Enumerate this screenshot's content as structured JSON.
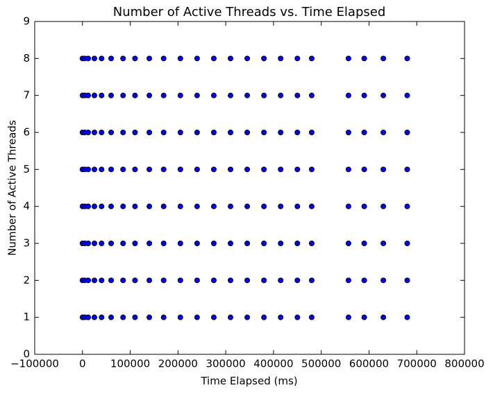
{
  "chart_data": {
    "type": "scatter",
    "title": "Number of Active Threads vs. Time Elapsed",
    "x_label": "Time Elapsed (ms)",
    "y_label": "Number of Active Threads",
    "color": "#0000ff",
    "edge_color": "#000000",
    "xlim": [
      -100000,
      800000
    ],
    "xticks": [
      {
        "value": -100000,
        "label": "−100000"
      },
      0,
      100000,
      200000,
      300000,
      400000,
      500000,
      600000,
      700000,
      800000
    ],
    "ylim": [
      0,
      9
    ],
    "yticks": [
      0,
      1,
      2,
      3,
      4,
      5,
      6,
      7,
      8,
      9
    ],
    "x": [
      0,
      5000,
      12000,
      25000,
      40000,
      60000,
      85000,
      110000,
      140000,
      170000,
      205000,
      240000,
      275000,
      310000,
      345000,
      380000,
      415000,
      450000,
      480000,
      557000,
      590000,
      630000,
      680000,
      0,
      5000,
      12000,
      25000,
      40000,
      60000,
      85000,
      110000,
      140000,
      170000,
      205000,
      240000,
      275000,
      310000,
      345000,
      380000,
      415000,
      450000,
      480000,
      557000,
      590000,
      630000,
      680000,
      0,
      5000,
      12000,
      25000,
      40000,
      60000,
      85000,
      110000,
      140000,
      170000,
      205000,
      240000,
      275000,
      310000,
      345000,
      380000,
      415000,
      450000,
      480000,
      557000,
      590000,
      630000,
      680000,
      0,
      5000,
      12000,
      25000,
      40000,
      60000,
      85000,
      110000,
      140000,
      170000,
      205000,
      240000,
      275000,
      310000,
      345000,
      380000,
      415000,
      450000,
      480000,
      557000,
      590000,
      630000,
      680000,
      0,
      5000,
      12000,
      25000,
      40000,
      60000,
      85000,
      110000,
      140000,
      170000,
      205000,
      240000,
      275000,
      310000,
      345000,
      380000,
      415000,
      450000,
      480000,
      557000,
      590000,
      630000,
      680000,
      0,
      5000,
      12000,
      25000,
      40000,
      60000,
      85000,
      110000,
      140000,
      170000,
      205000,
      240000,
      275000,
      310000,
      345000,
      380000,
      415000,
      450000,
      480000,
      557000,
      590000,
      630000,
      680000,
      0,
      5000,
      12000,
      25000,
      40000,
      60000,
      85000,
      110000,
      140000,
      170000,
      205000,
      240000,
      275000,
      310000,
      345000,
      380000,
      415000,
      450000,
      480000,
      557000,
      590000,
      630000,
      680000,
      0,
      5000,
      12000,
      25000,
      40000,
      60000,
      85000,
      110000,
      140000,
      170000,
      205000,
      240000,
      275000,
      310000,
      345000,
      380000,
      415000,
      450000,
      480000,
      557000,
      590000,
      630000,
      680000
    ],
    "values": [
      1,
      1,
      1,
      1,
      1,
      1,
      1,
      1,
      1,
      1,
      1,
      1,
      1,
      1,
      1,
      1,
      1,
      1,
      1,
      1,
      1,
      1,
      1,
      2,
      2,
      2,
      2,
      2,
      2,
      2,
      2,
      2,
      2,
      2,
      2,
      2,
      2,
      2,
      2,
      2,
      2,
      2,
      2,
      2,
      2,
      2,
      3,
      3,
      3,
      3,
      3,
      3,
      3,
      3,
      3,
      3,
      3,
      3,
      3,
      3,
      3,
      3,
      3,
      3,
      3,
      3,
      3,
      3,
      3,
      4,
      4,
      4,
      4,
      4,
      4,
      4,
      4,
      4,
      4,
      4,
      4,
      4,
      4,
      4,
      4,
      4,
      4,
      4,
      4,
      4,
      4,
      4,
      5,
      5,
      5,
      5,
      5,
      5,
      5,
      5,
      5,
      5,
      5,
      5,
      5,
      5,
      5,
      5,
      5,
      5,
      5,
      5,
      5,
      5,
      5,
      6,
      6,
      6,
      6,
      6,
      6,
      6,
      6,
      6,
      6,
      6,
      6,
      6,
      6,
      6,
      6,
      6,
      6,
      6,
      6,
      6,
      6,
      6,
      7,
      7,
      7,
      7,
      7,
      7,
      7,
      7,
      7,
      7,
      7,
      7,
      7,
      7,
      7,
      7,
      7,
      7,
      7,
      7,
      7,
      7,
      7,
      8,
      8,
      8,
      8,
      8,
      8,
      8,
      8,
      8,
      8,
      8,
      8,
      8,
      8,
      8,
      8,
      8,
      8,
      8,
      8,
      8,
      8,
      8
    ]
  }
}
